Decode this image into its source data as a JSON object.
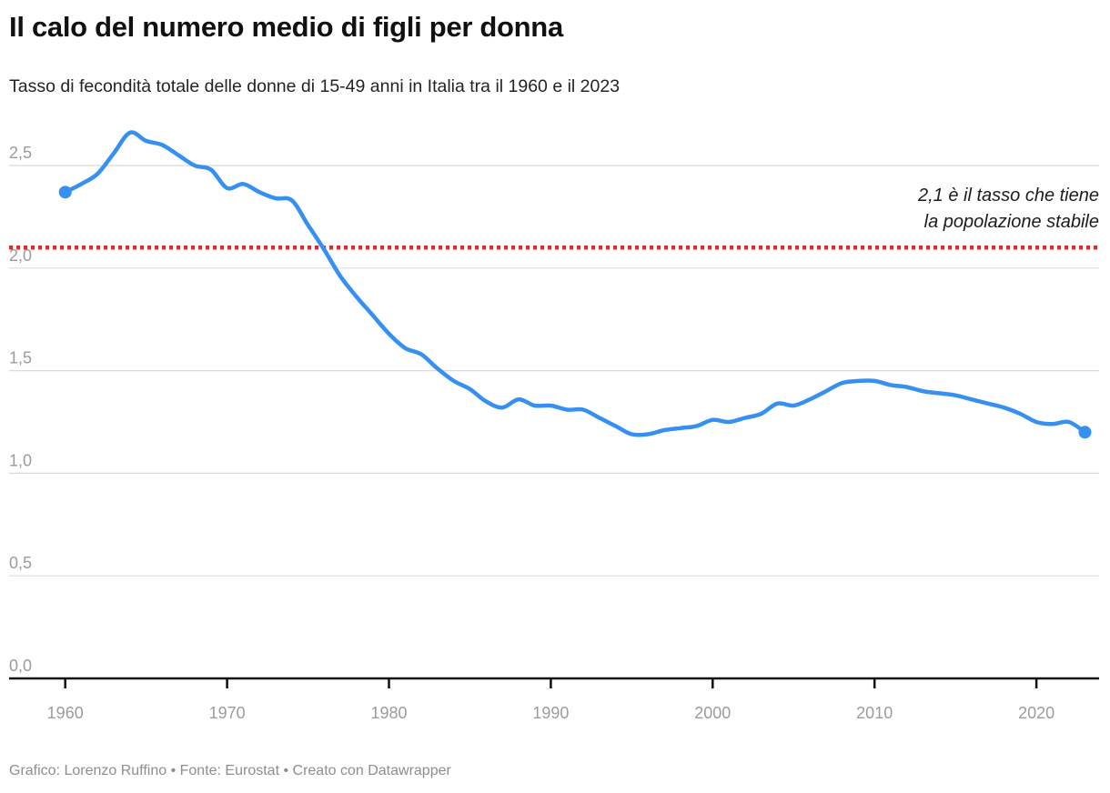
{
  "header": {
    "title": "Il calo del numero medio di figli per donna",
    "subtitle": "Tasso di fecondità totale delle donne di 15-49 anni in Italia tra il 1960 e il 2023"
  },
  "annotation": {
    "line1": "2,1 è il tasso che tiene",
    "line2": "la popolazione stabile"
  },
  "footer": {
    "text": "Grafico: Lorenzo Ruffino • Fonte: Eurostat • Creato con Datawrapper"
  },
  "colors": {
    "line": "#3590f1",
    "reference_line": "#d32f2f",
    "grid": "#dbdbdb",
    "axis": "#111111",
    "tick_label": "#9c9c9c",
    "title": "#111111",
    "subtitle": "#242424",
    "annotation": "#1c1c1c",
    "footer": "#8e8e8e"
  },
  "chart_data": {
    "type": "line",
    "title": "Il calo del numero medio di figli per donna",
    "subtitle": "Tasso di fecondità totale delle donne di 15-49 anni in Italia tra il 1960 e il 2023",
    "x": [
      1960,
      1961,
      1962,
      1963,
      1964,
      1965,
      1966,
      1967,
      1968,
      1969,
      1970,
      1971,
      1972,
      1973,
      1974,
      1975,
      1976,
      1977,
      1978,
      1979,
      1980,
      1981,
      1982,
      1983,
      1984,
      1985,
      1986,
      1987,
      1988,
      1989,
      1990,
      1991,
      1992,
      1993,
      1994,
      1995,
      1996,
      1997,
      1998,
      1999,
      2000,
      2001,
      2002,
      2003,
      2004,
      2005,
      2006,
      2007,
      2008,
      2009,
      2010,
      2011,
      2012,
      2013,
      2014,
      2015,
      2016,
      2017,
      2018,
      2019,
      2020,
      2021,
      2022,
      2023
    ],
    "series": [
      {
        "name": "Tasso di fecondità totale (Italia)",
        "values": [
          2.37,
          2.41,
          2.46,
          2.56,
          2.66,
          2.62,
          2.6,
          2.55,
          2.5,
          2.48,
          2.39,
          2.41,
          2.37,
          2.34,
          2.33,
          2.21,
          2.09,
          1.96,
          1.86,
          1.77,
          1.68,
          1.61,
          1.58,
          1.51,
          1.45,
          1.41,
          1.35,
          1.32,
          1.36,
          1.33,
          1.33,
          1.31,
          1.31,
          1.27,
          1.23,
          1.19,
          1.19,
          1.21,
          1.22,
          1.23,
          1.26,
          1.25,
          1.27,
          1.29,
          1.34,
          1.33,
          1.36,
          1.4,
          1.44,
          1.45,
          1.45,
          1.43,
          1.42,
          1.4,
          1.39,
          1.38,
          1.36,
          1.34,
          1.32,
          1.29,
          1.25,
          1.24,
          1.25,
          1.2
        ]
      }
    ],
    "reference_line": {
      "value": 2.1,
      "label": "2,1 è il tasso che tiene la popolazione stabile"
    },
    "ylim": [
      0,
      2.7
    ],
    "yticks": [
      0,
      0.5,
      1.0,
      1.5,
      2.0,
      2.5
    ],
    "ytick_labels": [
      "0,0",
      "0,5",
      "1,0",
      "1,5",
      "2,0",
      "2,5"
    ],
    "xticks": [
      1960,
      1970,
      1980,
      1990,
      2000,
      2010,
      2020
    ],
    "xlabel": "",
    "ylabel": "",
    "grid": true,
    "legend": false,
    "endpoint_markers": true
  }
}
